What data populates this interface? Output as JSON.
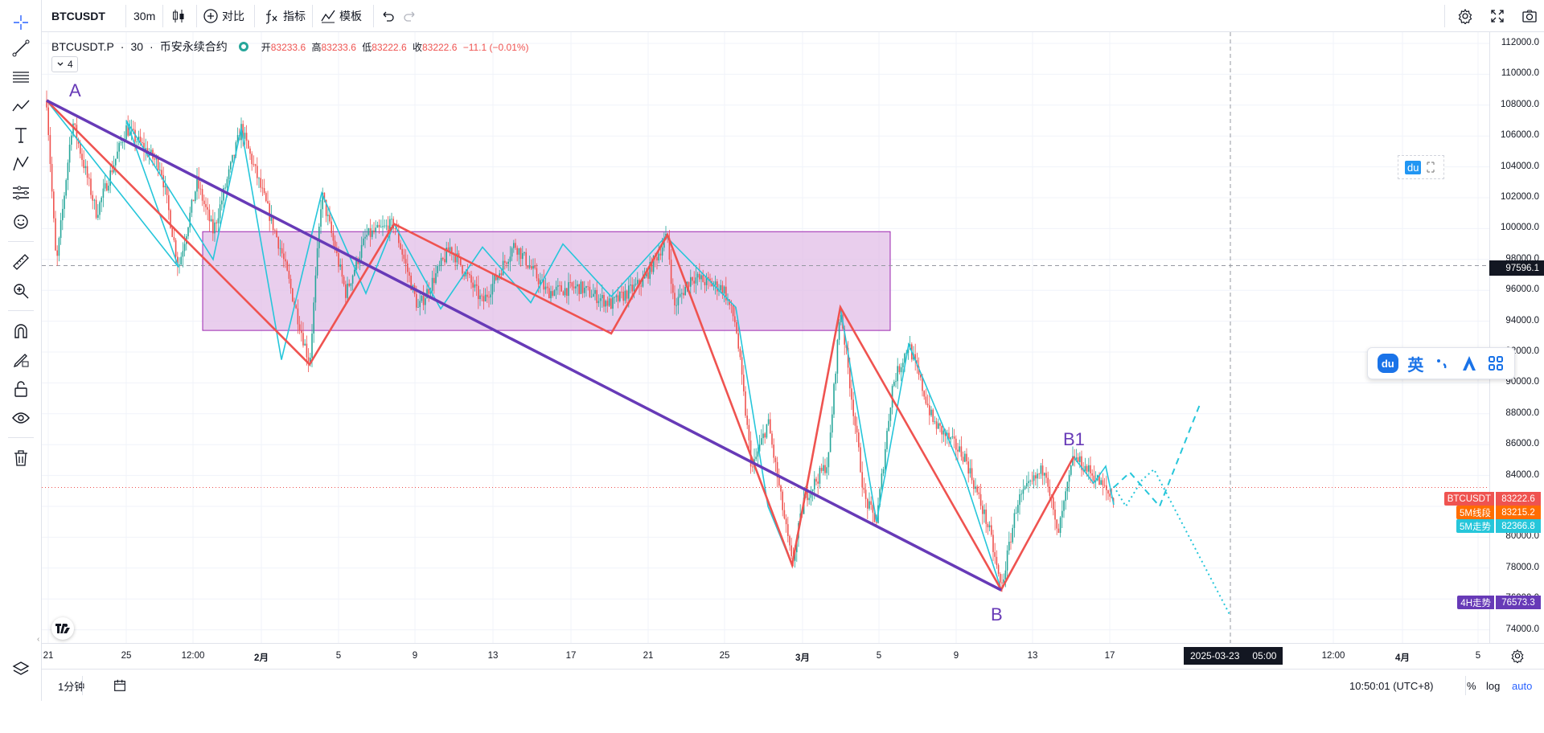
{
  "toolbar": {
    "symbol": "BTCUSDT",
    "interval": "30m",
    "compare_label": "对比",
    "indicators_label": "指标",
    "templates_label": "模板"
  },
  "legend": {
    "symbol": "BTCUSDT.P",
    "interval": "30",
    "exchange": "币安永续合约",
    "open_label": "开",
    "open": "83233.6",
    "high_label": "高",
    "high": "83233.6",
    "low_label": "低",
    "low": "83222.6",
    "close_label": "收",
    "close": "83222.6",
    "change": "−11.1 (−0.01%)",
    "collapse_count": "4"
  },
  "price_axis": {
    "ticks": [
      "112000.0",
      "110000.0",
      "108000.0",
      "106000.0",
      "104000.0",
      "102000.0",
      "100000.0",
      "98000.0",
      "96000.0",
      "94000.0",
      "92000.0",
      "90000.0",
      "88000.0",
      "86000.0",
      "84000.0",
      "82000.0",
      "80000.0",
      "78000.0",
      "76000.0",
      "74000.0"
    ],
    "crosshair_price": "97596.1"
  },
  "price_tags": [
    {
      "name": "BTCUSDT",
      "value": "83222.6",
      "color": "#ef5350",
      "price": 83222.6
    },
    {
      "name": "5M线段",
      "value": "83215.2",
      "color": "#ff6d00",
      "price": 83215.2
    },
    {
      "name": "5M走势",
      "value": "82366.8",
      "color": "#26c6da",
      "price": 82366.8
    },
    {
      "name": "4H走势",
      "value": "76573.3",
      "color": "#673ab7",
      "price": 76573.3
    }
  ],
  "time_axis": {
    "ticks": [
      "21",
      "25",
      "12:00",
      "2月",
      "5",
      "9",
      "13",
      "17",
      "21",
      "25",
      "3月",
      "5",
      "9",
      "13",
      "17",
      "12:00",
      "4月",
      "5"
    ],
    "crosshair_date": "2025-03-23",
    "crosshair_time": "05:00"
  },
  "wave_labels": {
    "a": "A",
    "b": "B",
    "b1": "B1"
  },
  "bottom_bar": {
    "interval_label": "1分钟",
    "clock": "10:50:01 (UTC+8)",
    "percent": "%",
    "log": "log",
    "auto": "auto"
  },
  "ime": {
    "du": "du",
    "lang": "英"
  },
  "colors": {
    "purple_line": "#673ab7",
    "red_line": "#ef5350",
    "cyan_line": "#26c6da",
    "box_fill": "#e1bee7",
    "box_border": "#9c27b0",
    "up_candle": "#26a69a",
    "down_candle": "#ef5350"
  },
  "chart_data": {
    "type": "candlestick-annotated",
    "symbol": "BTCUSDT.P",
    "y_range": [
      73000,
      113200
    ],
    "strokes_4h": [
      [
        "A",
        108300
      ],
      [
        "B",
        76573.3
      ]
    ],
    "segments_red": [
      108300,
      91200,
      100300,
      93200,
      99600,
      78200,
      94900,
      76600,
      85200
    ],
    "segments_cyan": [
      108300,
      97500,
      107000,
      98000,
      106500,
      91500,
      102300,
      95800,
      100300,
      94800,
      98800,
      95200,
      99000,
      95600,
      99500,
      94900,
      82000,
      78200,
      94900,
      81000,
      92500,
      83800,
      76600,
      85200,
      83500,
      84600,
      82100
    ],
    "consolidation_box": {
      "price_high": 99800,
      "price_low": 93400
    },
    "projection": [
      83222.6,
      84200,
      82000,
      88600,
      74900
    ]
  }
}
